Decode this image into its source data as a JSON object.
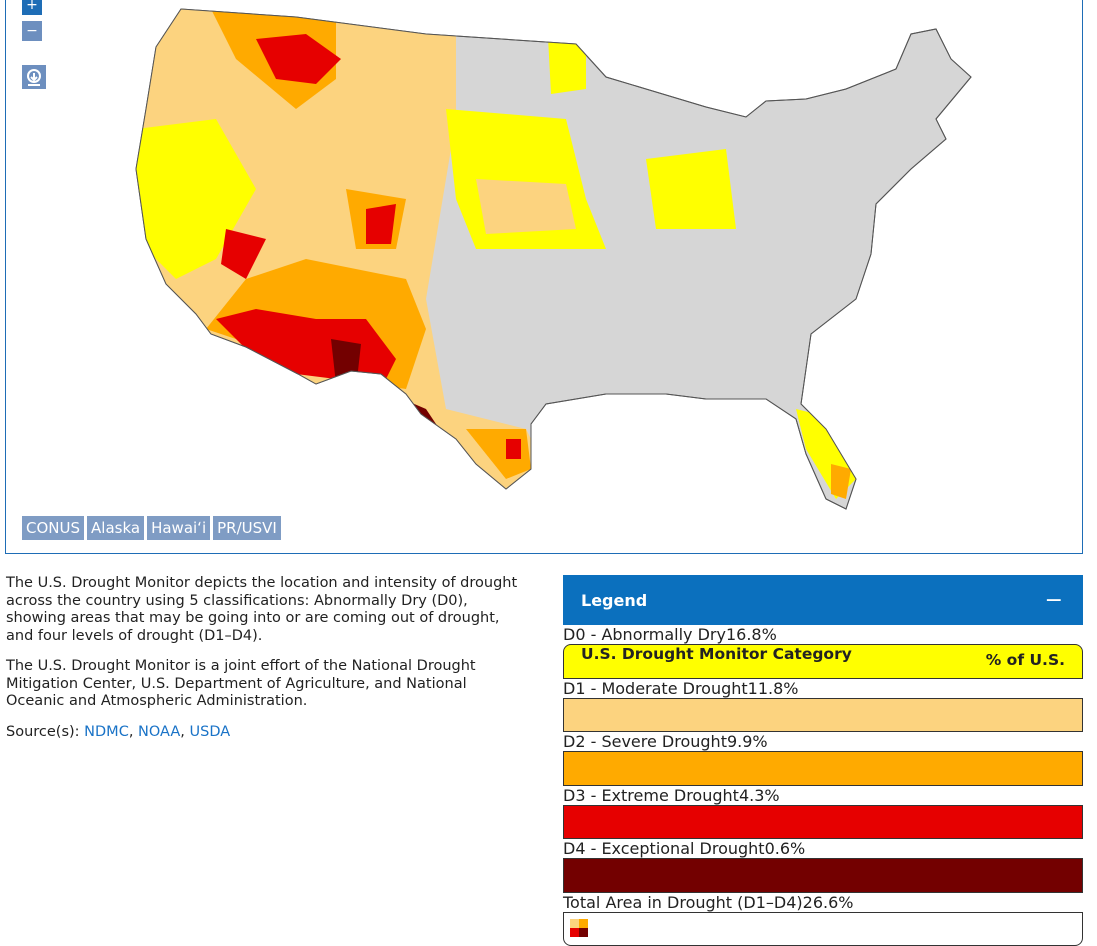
{
  "map_controls": {
    "zoom_in": "+",
    "zoom_out": "−"
  },
  "region_tabs": [
    "CONUS",
    "Alaska",
    "Hawaiʻi",
    "PR/USVI"
  ],
  "description": {
    "paragraphs": [
      "The U.S. Drought Monitor depicts the location and intensity of drought across the country using 5 classifications: Abnormally Dry (D0), showing areas that may be going into or are coming out of drought, and four levels of drought (D1–D4).",
      "The U.S. Drought Monitor is a joint effort of the National Drought Mitigation Center, U.S. Department of Agriculture, and National Oceanic and Atmospheric Administration."
    ],
    "sources_label": "Source(s):",
    "sources": [
      "NDMC",
      "NOAA",
      "USDA"
    ],
    "sources_separator": ", "
  },
  "legend": {
    "title": "Legend",
    "toggle": "−",
    "header": {
      "category": "U.S. Drought Monitor Category",
      "percent": "% of U.S."
    },
    "rows": [
      {
        "label": "D0 - Abnormally Dry",
        "percent": "16.8%",
        "color": "#ffff00"
      },
      {
        "label": "D1 - Moderate Drought",
        "percent": "11.8%",
        "color": "#fcd37f"
      },
      {
        "label": "D2 - Severe Drought",
        "percent": "9.9%",
        "color": "#ffaa00"
      },
      {
        "label": "D3 - Extreme Drought",
        "percent": "4.3%",
        "color": "#e60000"
      },
      {
        "label": "D4 - Exceptional Drought",
        "percent": "0.6%",
        "color": "#730000"
      },
      {
        "label": "Total Area in Drought (D1–D4)",
        "percent": "26.6%"
      }
    ]
  }
}
